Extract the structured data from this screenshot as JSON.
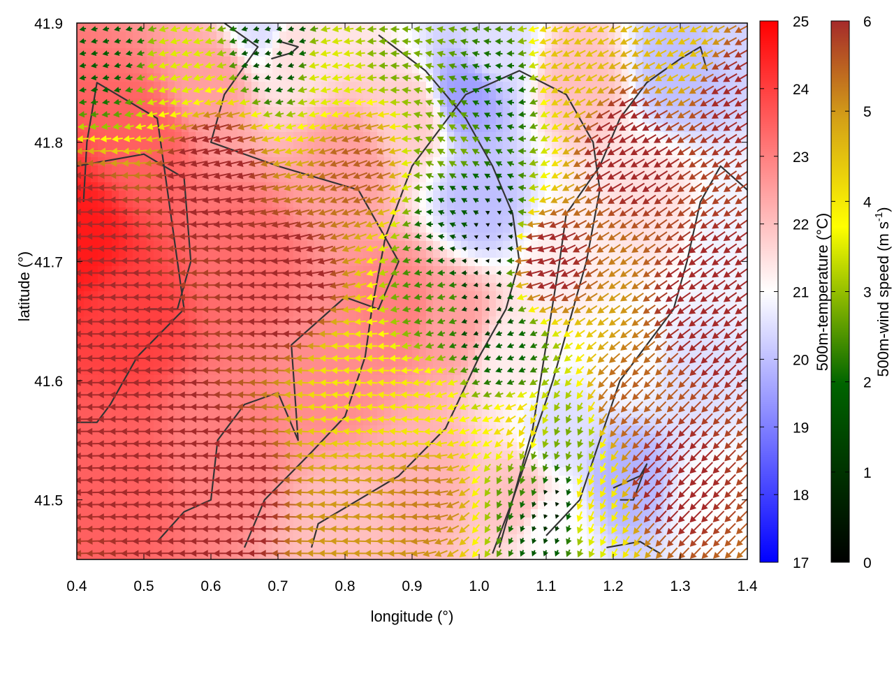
{
  "chart_data": {
    "type": "heatmap",
    "title": "",
    "xlabel": "longitude (°)",
    "ylabel": "latitude (°)",
    "xlim": [
      0.4,
      1.4
    ],
    "ylim": [
      41.45,
      41.9
    ],
    "xticks": [
      "0.4",
      "0.5",
      "0.6",
      "0.7",
      "0.8",
      "0.9",
      "1.0",
      "1.1",
      "1.2",
      "1.3",
      "1.4"
    ],
    "yticks": [
      "41.5",
      "41.6",
      "41.7",
      "41.8",
      "41.9"
    ],
    "xtick_values": [
      0.4,
      0.5,
      0.6,
      0.7,
      0.8,
      0.9,
      1.0,
      1.1,
      1.2,
      1.3,
      1.4
    ],
    "ytick_values": [
      41.5,
      41.6,
      41.7,
      41.8,
      41.9
    ],
    "temperature_colorbar": {
      "label": "500m-temperature (°C)",
      "range": [
        17,
        25
      ],
      "ticks": [
        "17",
        "18",
        "19",
        "20",
        "21",
        "22",
        "23",
        "24",
        "25"
      ],
      "colors": [
        "#0000ff",
        "#ffffff",
        "#ff0000"
      ]
    },
    "wind_colorbar": {
      "label_main": "500m-wind speed (m s",
      "label_sup": "-1",
      "label_end": ")",
      "range": [
        0,
        6
      ],
      "ticks": [
        "0",
        "1",
        "2",
        "3",
        "4",
        "5",
        "6"
      ],
      "colors": [
        "#000000",
        "#006400",
        "#ffff00",
        "#d4a017",
        "#a52a2a"
      ]
    },
    "temperature_field_nodes": [
      {
        "lon": 0.4,
        "lat": 41.72,
        "t": 24.6
      },
      {
        "lon": 0.48,
        "lat": 41.65,
        "t": 24.0
      },
      {
        "lon": 0.5,
        "lat": 41.8,
        "t": 23.5
      },
      {
        "lon": 0.45,
        "lat": 41.52,
        "t": 23.5
      },
      {
        "lon": 0.65,
        "lat": 41.7,
        "t": 23.3
      },
      {
        "lon": 0.6,
        "lat": 41.85,
        "t": 22.5
      },
      {
        "lon": 0.62,
        "lat": 41.55,
        "t": 23.0
      },
      {
        "lon": 0.72,
        "lat": 41.88,
        "t": 21.5
      },
      {
        "lon": 0.68,
        "lat": 41.9,
        "t": 20.5
      },
      {
        "lon": 0.8,
        "lat": 41.78,
        "t": 22.5
      },
      {
        "lon": 0.78,
        "lat": 41.6,
        "t": 22.8
      },
      {
        "lon": 0.8,
        "lat": 41.48,
        "t": 22.0
      },
      {
        "lon": 0.88,
        "lat": 41.66,
        "t": 23.0
      },
      {
        "lon": 0.9,
        "lat": 41.82,
        "t": 21.8
      },
      {
        "lon": 0.92,
        "lat": 41.52,
        "t": 22.2
      },
      {
        "lon": 0.96,
        "lat": 41.65,
        "t": 22.5
      },
      {
        "lon": 0.98,
        "lat": 41.84,
        "t": 19.5
      },
      {
        "lon": 1.0,
        "lat": 41.75,
        "t": 20.0
      },
      {
        "lon": 1.02,
        "lat": 41.88,
        "t": 20.5
      },
      {
        "lon": 1.05,
        "lat": 41.62,
        "t": 21.3
      },
      {
        "lon": 1.06,
        "lat": 41.5,
        "t": 22.0
      },
      {
        "lon": 1.1,
        "lat": 41.48,
        "t": 21.0
      },
      {
        "lon": 1.12,
        "lat": 41.56,
        "t": 20.5
      },
      {
        "lon": 1.14,
        "lat": 41.7,
        "t": 21.3
      },
      {
        "lon": 1.15,
        "lat": 41.85,
        "t": 22.0
      },
      {
        "lon": 1.22,
        "lat": 41.52,
        "t": 19.8
      },
      {
        "lon": 1.22,
        "lat": 41.62,
        "t": 21.0
      },
      {
        "lon": 1.25,
        "lat": 41.75,
        "t": 21.5
      },
      {
        "lon": 1.3,
        "lat": 41.86,
        "t": 20.0
      },
      {
        "lon": 1.32,
        "lat": 41.6,
        "t": 20.5
      },
      {
        "lon": 1.35,
        "lat": 41.5,
        "t": 21.0
      },
      {
        "lon": 1.38,
        "lat": 41.72,
        "t": 20.8
      },
      {
        "lon": 1.4,
        "lat": 41.9,
        "t": 20.3
      }
    ],
    "wind_speed_nodes": [
      {
        "lon": 0.4,
        "lat": 41.72,
        "s": 6.2
      },
      {
        "lon": 0.48,
        "lat": 41.6,
        "s": 6.2
      },
      {
        "lon": 0.45,
        "lat": 41.88,
        "s": 1.8
      },
      {
        "lon": 0.55,
        "lat": 41.86,
        "s": 3.5
      },
      {
        "lon": 0.6,
        "lat": 41.78,
        "s": 6.2
      },
      {
        "lon": 0.62,
        "lat": 41.5,
        "s": 6.2
      },
      {
        "lon": 0.7,
        "lat": 41.88,
        "s": 1.5
      },
      {
        "lon": 0.72,
        "lat": 41.68,
        "s": 6.2
      },
      {
        "lon": 0.78,
        "lat": 41.86,
        "s": 3.5
      },
      {
        "lon": 0.82,
        "lat": 41.78,
        "s": 5.5
      },
      {
        "lon": 0.82,
        "lat": 41.6,
        "s": 4.0
      },
      {
        "lon": 0.82,
        "lat": 41.48,
        "s": 5.0
      },
      {
        "lon": 0.88,
        "lat": 41.88,
        "s": 2.8
      },
      {
        "lon": 0.92,
        "lat": 41.58,
        "s": 4.0
      },
      {
        "lon": 0.95,
        "lat": 41.8,
        "s": 2.8
      },
      {
        "lon": 0.95,
        "lat": 41.66,
        "s": 2.5
      },
      {
        "lon": 0.92,
        "lat": 41.5,
        "s": 5.2
      },
      {
        "lon": 0.97,
        "lat": 41.74,
        "s": 1.8
      },
      {
        "lon": 1.01,
        "lat": 41.72,
        "s": 0.3
      },
      {
        "lon": 1.0,
        "lat": 41.66,
        "s": 0.8
      },
      {
        "lon": 1.03,
        "lat": 41.84,
        "s": 2.0
      },
      {
        "lon": 1.04,
        "lat": 41.62,
        "s": 2.0
      },
      {
        "lon": 1.06,
        "lat": 41.56,
        "s": 4.2
      },
      {
        "lon": 1.08,
        "lat": 41.52,
        "s": 2.5
      },
      {
        "lon": 1.11,
        "lat": 41.5,
        "s": 0.6
      },
      {
        "lon": 1.13,
        "lat": 41.55,
        "s": 2.8
      },
      {
        "lon": 1.1,
        "lat": 41.7,
        "s": 6.2
      },
      {
        "lon": 1.16,
        "lat": 41.5,
        "s": 4.0
      },
      {
        "lon": 1.14,
        "lat": 41.86,
        "s": 4.5
      },
      {
        "lon": 1.22,
        "lat": 41.58,
        "s": 5.5
      },
      {
        "lon": 1.22,
        "lat": 41.8,
        "s": 6.2
      },
      {
        "lon": 1.28,
        "lat": 41.52,
        "s": 6.2
      },
      {
        "lon": 1.3,
        "lat": 41.88,
        "s": 4.5
      },
      {
        "lon": 1.35,
        "lat": 41.66,
        "s": 6.2
      },
      {
        "lon": 1.38,
        "lat": 41.84,
        "s": 6.0
      }
    ],
    "wind_direction_nodes": [
      {
        "lon": 0.45,
        "lat": 41.7,
        "dir_deg": 180
      },
      {
        "lon": 0.6,
        "lat": 41.86,
        "dir_deg": 195
      },
      {
        "lon": 0.7,
        "lat": 41.6,
        "dir_deg": 178
      },
      {
        "lon": 0.85,
        "lat": 41.75,
        "dir_deg": 200
      },
      {
        "lon": 0.85,
        "lat": 41.55,
        "dir_deg": 175
      },
      {
        "lon": 0.98,
        "lat": 41.78,
        "dir_deg": 150
      },
      {
        "lon": 1.0,
        "lat": 41.6,
        "dir_deg": 200
      },
      {
        "lon": 1.1,
        "lat": 41.52,
        "dir_deg": 250
      },
      {
        "lon": 1.15,
        "lat": 41.8,
        "dir_deg": 210
      },
      {
        "lon": 1.28,
        "lat": 41.7,
        "dir_deg": 215
      },
      {
        "lon": 1.3,
        "lat": 41.55,
        "dir_deg": 225
      }
    ],
    "coastline_contours": [
      [
        [
          0.41,
          41.75
        ],
        [
          0.415,
          41.8
        ],
        [
          0.43,
          41.85
        ],
        [
          0.52,
          41.82
        ],
        [
          0.53,
          41.78
        ],
        [
          0.55,
          41.7
        ],
        [
          0.56,
          41.66
        ],
        [
          0.49,
          41.62
        ],
        [
          0.45,
          41.58
        ],
        [
          0.43,
          41.565
        ],
        [
          0.4,
          41.565
        ]
      ],
      [
        [
          0.4,
          41.78
        ],
        [
          0.5,
          41.79
        ],
        [
          0.56,
          41.77
        ],
        [
          0.57,
          41.7
        ],
        [
          0.55,
          41.66
        ],
        [
          0.5,
          41.66
        ]
      ],
      [
        [
          0.52,
          41.465
        ],
        [
          0.56,
          41.49
        ],
        [
          0.6,
          41.5
        ],
        [
          0.61,
          41.55
        ],
        [
          0.65,
          41.58
        ],
        [
          0.7,
          41.59
        ],
        [
          0.73,
          41.55
        ],
        [
          0.72,
          41.63
        ],
        [
          0.8,
          41.67
        ],
        [
          0.85,
          41.66
        ],
        [
          0.88,
          41.7
        ],
        [
          0.82,
          41.76
        ],
        [
          0.7,
          41.78
        ],
        [
          0.6,
          41.8
        ],
        [
          0.62,
          41.84
        ],
        [
          0.67,
          41.88
        ],
        [
          0.62,
          41.9
        ]
      ],
      [
        [
          0.65,
          41.46
        ],
        [
          0.68,
          41.5
        ],
        [
          0.75,
          41.54
        ],
        [
          0.8,
          41.57
        ],
        [
          0.83,
          41.62
        ],
        [
          0.84,
          41.66
        ],
        [
          0.86,
          41.72
        ],
        [
          0.9,
          41.78
        ],
        [
          0.94,
          41.81
        ],
        [
          0.98,
          41.84
        ],
        [
          1.06,
          41.86
        ],
        [
          1.13,
          41.84
        ],
        [
          1.17,
          41.8
        ],
        [
          1.18,
          41.76
        ],
        [
          1.16,
          41.7
        ],
        [
          1.14,
          41.66
        ],
        [
          1.11,
          41.6
        ],
        [
          1.08,
          41.55
        ],
        [
          1.05,
          41.5
        ],
        [
          1.03,
          41.46
        ]
      ],
      [
        [
          0.75,
          41.46
        ],
        [
          0.76,
          41.48
        ],
        [
          0.82,
          41.5
        ],
        [
          0.88,
          41.52
        ],
        [
          0.95,
          41.56
        ],
        [
          1.0,
          41.62
        ],
        [
          1.04,
          41.66
        ],
        [
          1.06,
          41.7
        ],
        [
          1.05,
          41.74
        ],
        [
          1.02,
          41.78
        ],
        [
          0.98,
          41.82
        ],
        [
          0.92,
          41.86
        ],
        [
          0.85,
          41.89
        ]
      ],
      [
        [
          1.02,
          41.455
        ],
        [
          1.05,
          41.5
        ],
        [
          1.08,
          41.56
        ],
        [
          1.1,
          41.63
        ],
        [
          1.12,
          41.7
        ],
        [
          1.13,
          41.74
        ],
        [
          1.18,
          41.78
        ],
        [
          1.21,
          41.82
        ],
        [
          1.25,
          41.85
        ],
        [
          1.3,
          41.87
        ],
        [
          1.33,
          41.88
        ],
        [
          1.34,
          41.86
        ]
      ],
      [
        [
          1.1,
          41.47
        ],
        [
          1.15,
          41.5
        ],
        [
          1.18,
          41.55
        ],
        [
          1.21,
          41.6
        ],
        [
          1.25,
          41.63
        ],
        [
          1.29,
          41.66
        ],
        [
          1.31,
          41.7
        ],
        [
          1.33,
          41.75
        ],
        [
          1.36,
          41.78
        ],
        [
          1.4,
          41.76
        ]
      ],
      [
        [
          1.2,
          41.51
        ],
        [
          1.24,
          41.52
        ],
        [
          1.25,
          41.53
        ],
        [
          1.23,
          41.5
        ],
        [
          1.21,
          41.5
        ]
      ],
      [
        [
          1.19,
          41.46
        ],
        [
          1.24,
          41.465
        ],
        [
          1.27,
          41.455
        ]
      ],
      [
        [
          0.69,
          41.87
        ],
        [
          0.72,
          41.875
        ],
        [
          0.73,
          41.88
        ],
        [
          0.7,
          41.885
        ]
      ]
    ]
  }
}
